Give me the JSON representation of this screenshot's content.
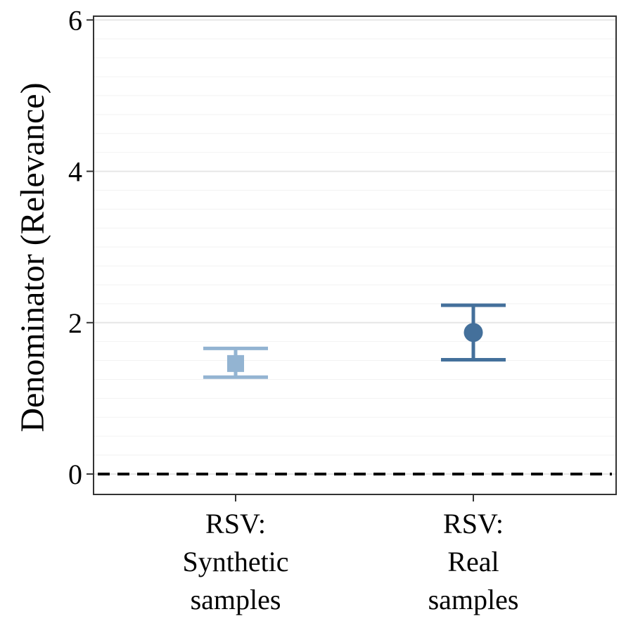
{
  "chart_data": {
    "type": "errorbar",
    "title": "",
    "xlabel": "",
    "ylabel": "Denominator (Relevance)",
    "ylim": [
      -0.27,
      6.05
    ],
    "y_ticks": [
      0,
      2,
      4,
      6
    ],
    "y_tick_labels": [
      "0",
      "2",
      "4",
      "6"
    ],
    "minor_grid_step": 0.25,
    "grid": true,
    "reference_line": {
      "y": 0,
      "style": "dashed",
      "color": "#000000"
    },
    "categories": [
      [
        "RSV:",
        "Synthetic",
        "samples"
      ],
      [
        "RSV:",
        "Real",
        "samples"
      ]
    ],
    "points": [
      {
        "category_index": 0,
        "y": 1.46,
        "lower": 1.28,
        "upper": 1.66,
        "marker": "square",
        "color": "#93b4d2"
      },
      {
        "category_index": 1,
        "y": 1.87,
        "lower": 1.51,
        "upper": 2.23,
        "marker": "circle",
        "color": "#44709b"
      }
    ]
  }
}
